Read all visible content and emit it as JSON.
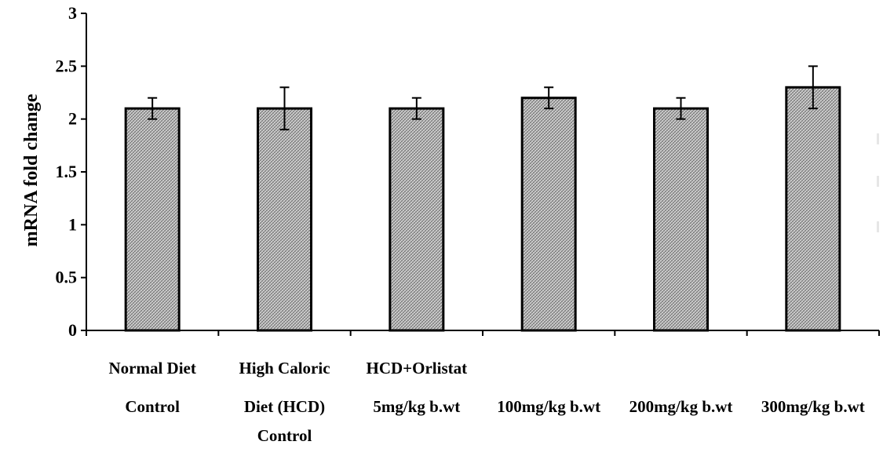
{
  "chart_data": {
    "type": "bar",
    "title": "",
    "xlabel": "",
    "ylabel": "mRNA fold change",
    "ylim": [
      0,
      3
    ],
    "yticks": [
      "0",
      "0.5",
      "1",
      "1.5",
      "2",
      "2.5",
      "3"
    ],
    "grid": false,
    "categories": [
      [
        "Normal Diet",
        "Control"
      ],
      [
        "High Caloric",
        "Diet (HCD)",
        "Control"
      ],
      [
        "HCD+Orlistat",
        "5mg/kg b.wt"
      ],
      [
        "",
        "100mg/kg b.wt"
      ],
      [
        "",
        "200mg/kg b.wt"
      ],
      [
        "",
        "300mg/kg b.wt"
      ]
    ],
    "values": [
      2.1,
      2.1,
      2.1,
      2.2,
      2.1,
      2.3
    ],
    "errors": [
      0.1,
      0.2,
      0.1,
      0.1,
      0.1,
      0.2
    ],
    "bar_fill": "#c8c8c8",
    "bar_pattern": "crosshatch",
    "bar_stroke": "#000000"
  }
}
